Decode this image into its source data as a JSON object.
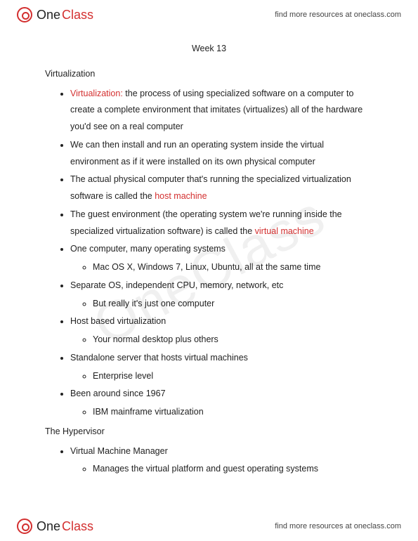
{
  "brand": {
    "part1": "One",
    "part2": "Class"
  },
  "resourcesText": "find more resources at oneclass.com",
  "watermark": "OneClass",
  "title": "Week 13",
  "sections": [
    {
      "heading": "Virtualization",
      "items": [
        {
          "pre": "",
          "hl": "Virtualization:",
          "post": " the process of using specialized software on a computer to create a complete environment that imitates (virtualizes) all of the hardware you'd see on a real computer"
        },
        {
          "text": "We can then install and run an operating system inside the virtual environment as if it were installed on its own physical computer"
        },
        {
          "pre": "The actual physical computer that's running the specialized virtualization software is called the ",
          "hl": "host machine",
          "post": ""
        },
        {
          "pre": "The guest environment (the operating system we're running inside the specialized virtualization software) is called the ",
          "hl": "virtual machine",
          "post": ""
        },
        {
          "text": "One computer, many operating systems",
          "sub": [
            {
              "text": "Mac OS X, Windows 7, Linux, Ubuntu, all at the same time"
            }
          ]
        },
        {
          "text": "Separate OS, independent CPU, memory, network, etc",
          "sub": [
            {
              "text": "But really it's just one computer"
            }
          ]
        },
        {
          "text": "Host based virtualization",
          "sub": [
            {
              "text": "Your normal desktop plus others"
            }
          ]
        },
        {
          "text": "Standalone server that hosts virtual machines",
          "sub": [
            {
              "text": "Enterprise level"
            }
          ]
        },
        {
          "text": "Been around since 1967",
          "sub": [
            {
              "text": "IBM mainframe virtualization"
            }
          ]
        }
      ]
    },
    {
      "heading": "The Hypervisor",
      "items": [
        {
          "text": "Virtual Machine Manager",
          "sub": [
            {
              "text": "Manages the virtual platform and guest operating systems"
            }
          ]
        }
      ]
    }
  ]
}
